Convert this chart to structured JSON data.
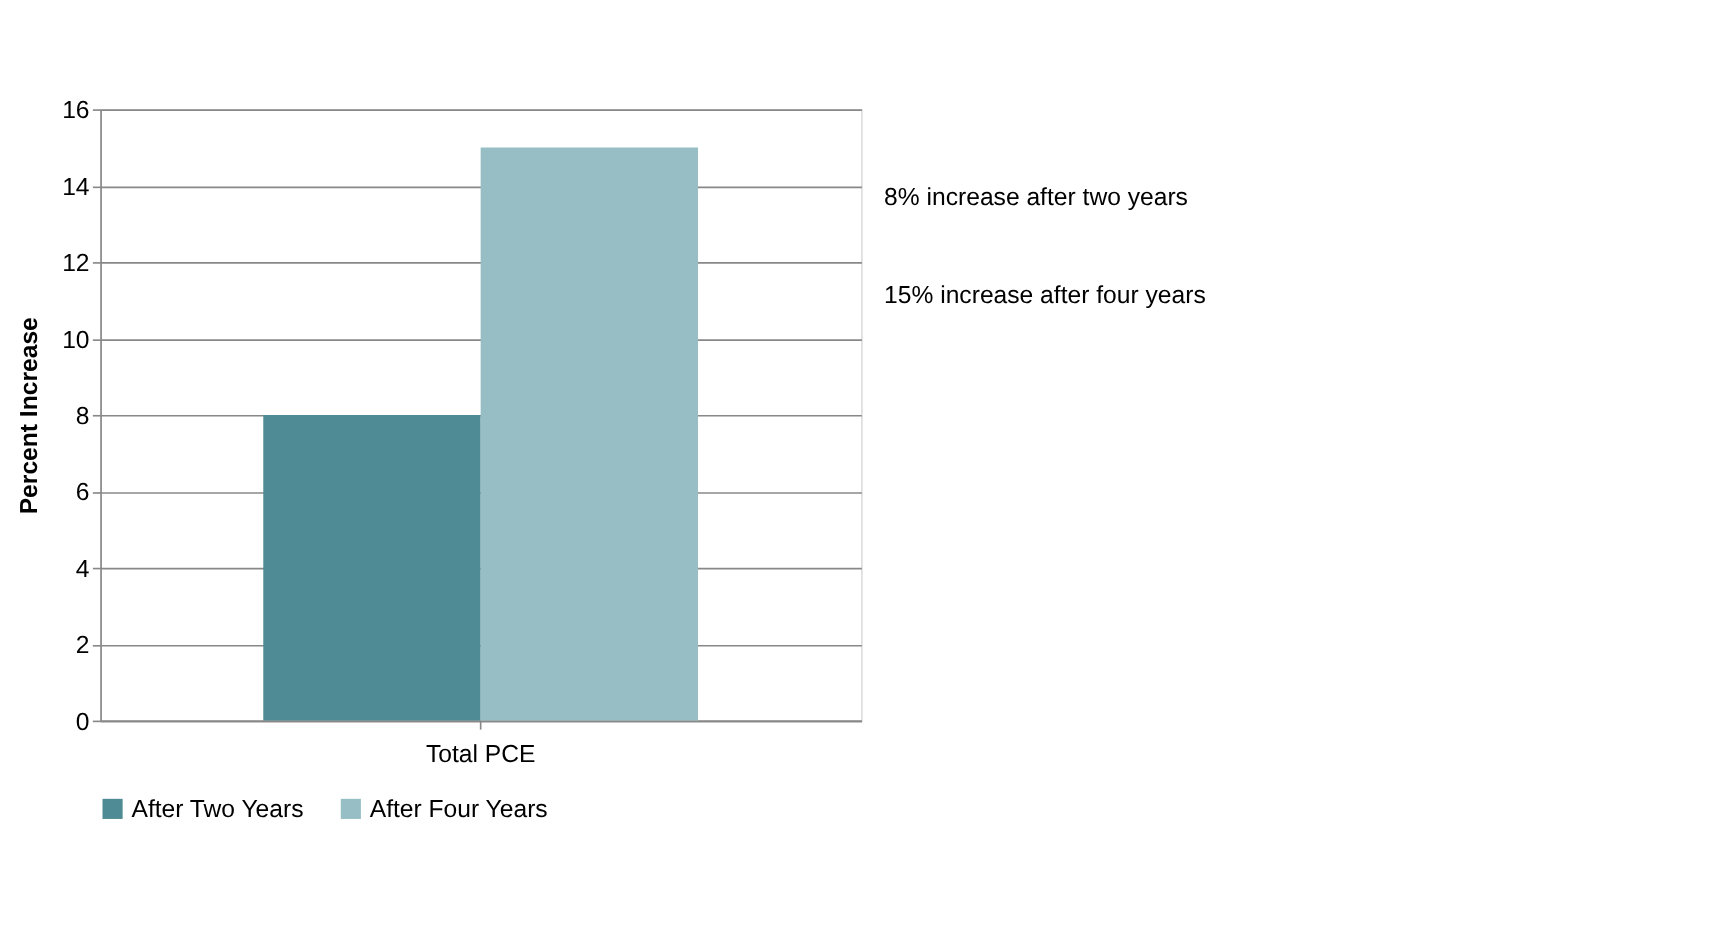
{
  "chart_data": {
    "type": "bar",
    "categories": [
      "Total PCE"
    ],
    "series": [
      {
        "name": "After Two Years",
        "color": "#4e8b94",
        "values": [
          8
        ]
      },
      {
        "name": "After Four Years",
        "color": "#97bec5",
        "values": [
          15
        ]
      }
    ],
    "ylabel": "Percent Increase",
    "ylim": [
      0,
      16
    ],
    "yticks": [
      0,
      2,
      4,
      6,
      8,
      10,
      12,
      14,
      16
    ],
    "grid": "y",
    "legend": "bottom",
    "annotations": [
      "8% increase after two years",
      "15% increase after four years"
    ]
  }
}
